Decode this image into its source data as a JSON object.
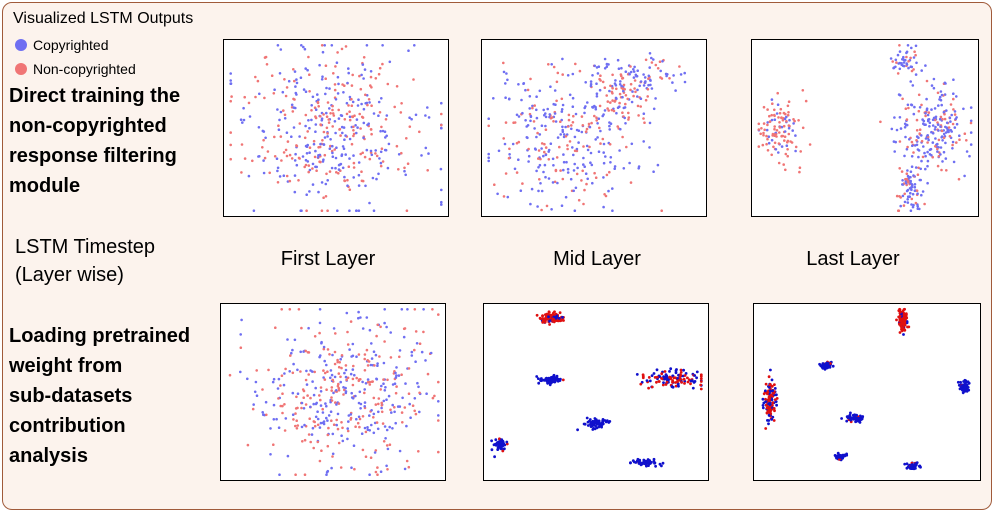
{
  "title": "Visualized LSTM Outputs",
  "legend": [
    {
      "label": "Copyrighted",
      "color": "#6f6ff2"
    },
    {
      "label": "Non-copyrighted",
      "color": "#f07575"
    }
  ],
  "row_labels": {
    "top": [
      "Direct training the",
      "non-copyrighted",
      "response filtering",
      "module"
    ],
    "bottom": [
      "Loading pretrained",
      "weight from",
      "sub-datasets",
      "contribution",
      "analysis"
    ]
  },
  "axis_label": [
    "LSTM Timestep",
    "(Layer wise)"
  ],
  "column_labels": [
    "First Layer",
    "Mid Layer",
    "Last Layer"
  ],
  "colors": {
    "copyrighted_light": "#6f6ff2",
    "noncopyrighted_light": "#f07575",
    "copyrighted_dark": "#1010cc",
    "noncopyrighted_dark": "#e01010"
  },
  "chart_data": [
    {
      "type": "scatter",
      "row": "top",
      "layer": "First Layer",
      "series": [
        {
          "name": "Copyrighted",
          "color": "#6f6ff2",
          "n": 260
        },
        {
          "name": "Non-copyrighted",
          "color": "#f07575",
          "n": 220
        }
      ]
    },
    {
      "type": "scatter",
      "row": "top",
      "layer": "Mid Layer",
      "series": [
        {
          "name": "Copyrighted",
          "color": "#6f6ff2",
          "n": 260
        },
        {
          "name": "Non-copyrighted",
          "color": "#f07575",
          "n": 220
        }
      ]
    },
    {
      "type": "scatter",
      "row": "top",
      "layer": "Last Layer",
      "series": [
        {
          "name": "Copyrighted",
          "color": "#6f6ff2",
          "n": 260
        },
        {
          "name": "Non-copyrighted",
          "color": "#f07575",
          "n": 220
        }
      ]
    },
    {
      "type": "scatter",
      "row": "bottom",
      "layer": "First Layer",
      "series": [
        {
          "name": "Copyrighted",
          "color": "#6f6ff2",
          "n": 260
        },
        {
          "name": "Non-copyrighted",
          "color": "#f07575",
          "n": 220
        }
      ]
    },
    {
      "type": "scatter",
      "row": "bottom",
      "layer": "Mid Layer",
      "series": [
        {
          "name": "Copyrighted",
          "color": "#1010cc",
          "n": 260
        },
        {
          "name": "Non-copyrighted",
          "color": "#e01010",
          "n": 220
        }
      ]
    },
    {
      "type": "scatter",
      "row": "bottom",
      "layer": "Last Layer",
      "series": [
        {
          "name": "Copyrighted",
          "color": "#1010cc",
          "n": 260
        },
        {
          "name": "Non-copyrighted",
          "color": "#e01010",
          "n": 220
        }
      ]
    }
  ]
}
